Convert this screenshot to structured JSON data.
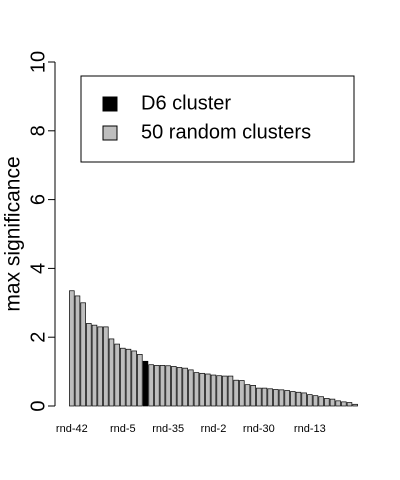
{
  "chart_data": {
    "type": "bar",
    "ylabel": "max significance",
    "categories": [
      "rnd-42",
      null,
      null,
      null,
      null,
      null,
      null,
      null,
      null,
      "rnd-5",
      null,
      null,
      null,
      null,
      null,
      null,
      null,
      "rnd-35",
      null,
      null,
      null,
      null,
      null,
      null,
      null,
      "rnd-2",
      null,
      null,
      null,
      null,
      null,
      null,
      null,
      "rnd-30",
      null,
      null,
      null,
      null,
      null,
      null,
      null,
      null,
      "rnd-13",
      null,
      null,
      null,
      null,
      null,
      null,
      null,
      null
    ],
    "series": [
      {
        "name": "D6 cluster",
        "color": "#000000",
        "values": [
          null,
          null,
          null,
          null,
          null,
          null,
          null,
          null,
          null,
          null,
          null,
          null,
          null,
          1.3,
          null,
          null,
          null,
          null,
          null,
          null,
          null,
          null,
          null,
          null,
          null,
          null,
          null,
          null,
          null,
          null,
          null,
          null,
          null,
          null,
          null,
          null,
          null,
          null,
          null,
          null,
          null,
          null,
          null,
          null,
          null,
          null,
          null,
          null,
          null,
          null,
          null
        ]
      },
      {
        "name": "50 random clusters",
        "color": "#bebebe",
        "values": [
          3.35,
          3.2,
          3.0,
          2.4,
          2.35,
          2.3,
          2.3,
          1.95,
          1.8,
          1.68,
          1.65,
          1.6,
          1.5,
          null,
          1.2,
          1.18,
          1.18,
          1.17,
          1.15,
          1.12,
          1.1,
          1.05,
          0.97,
          0.95,
          0.93,
          0.9,
          0.88,
          0.87,
          0.87,
          0.75,
          0.74,
          0.62,
          0.6,
          0.52,
          0.52,
          0.5,
          0.48,
          0.47,
          0.45,
          0.42,
          0.4,
          0.38,
          0.33,
          0.3,
          0.27,
          0.22,
          0.2,
          0.15,
          0.12,
          0.1,
          0.05
        ]
      }
    ],
    "ylim": [
      0,
      10
    ],
    "yticks": [
      0,
      2,
      4,
      6,
      8,
      10
    ],
    "legend": "top-right"
  }
}
